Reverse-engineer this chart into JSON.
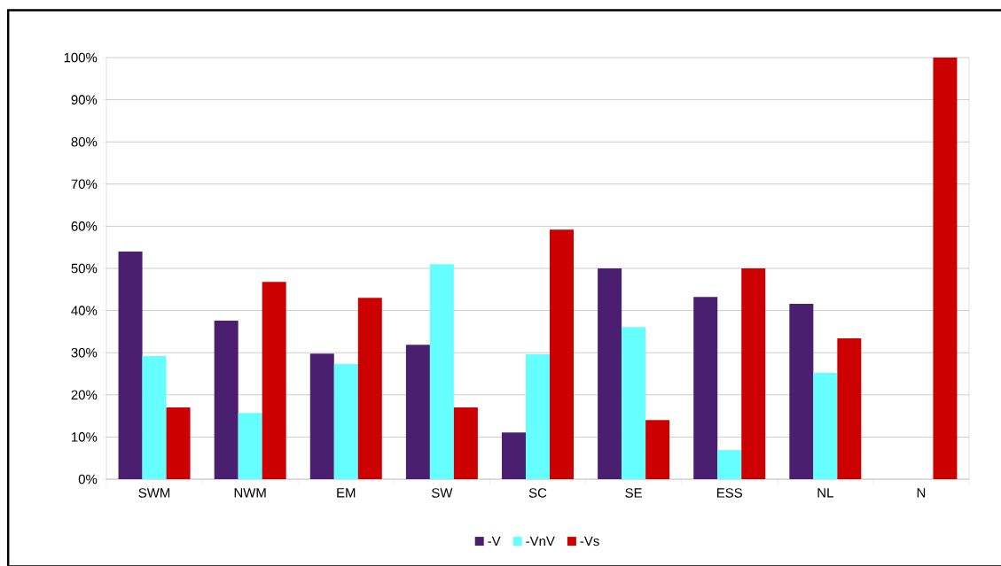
{
  "chart_data": {
    "type": "bar",
    "categories": [
      "SWM",
      "NWM",
      "EM",
      "SW",
      "SC",
      "SE",
      "ESS",
      "NL",
      "N"
    ],
    "series": [
      {
        "name": "-V",
        "color": "#4b1f6f",
        "values": [
          54.0,
          37.6,
          29.8,
          31.9,
          11.1,
          50.0,
          43.2,
          41.6,
          0
        ]
      },
      {
        "name": "-VnV",
        "color": "#66ffff",
        "values": [
          29.2,
          15.7,
          27.3,
          51.0,
          29.6,
          36.1,
          6.9,
          25.2,
          0
        ]
      },
      {
        "name": "-Vs",
        "color": "#cc0000",
        "values": [
          17.0,
          46.8,
          43.0,
          17.0,
          59.2,
          14.0,
          50.0,
          33.4,
          100
        ]
      }
    ],
    "ylim": [
      0,
      100
    ],
    "yticks": [
      {
        "value": 0,
        "label": "0%"
      },
      {
        "value": 10,
        "label": "10%"
      },
      {
        "value": 20,
        "label": "20%"
      },
      {
        "value": 30,
        "label": "30%"
      },
      {
        "value": 40,
        "label": "40%"
      },
      {
        "value": 50,
        "label": "50%"
      },
      {
        "value": 60,
        "label": "60%"
      },
      {
        "value": 70,
        "label": "70%"
      },
      {
        "value": 80,
        "label": "80%"
      },
      {
        "value": 90,
        "label": "90%"
      },
      {
        "value": 100,
        "label": "100%"
      }
    ],
    "grid": "y",
    "legend": "bottom"
  }
}
